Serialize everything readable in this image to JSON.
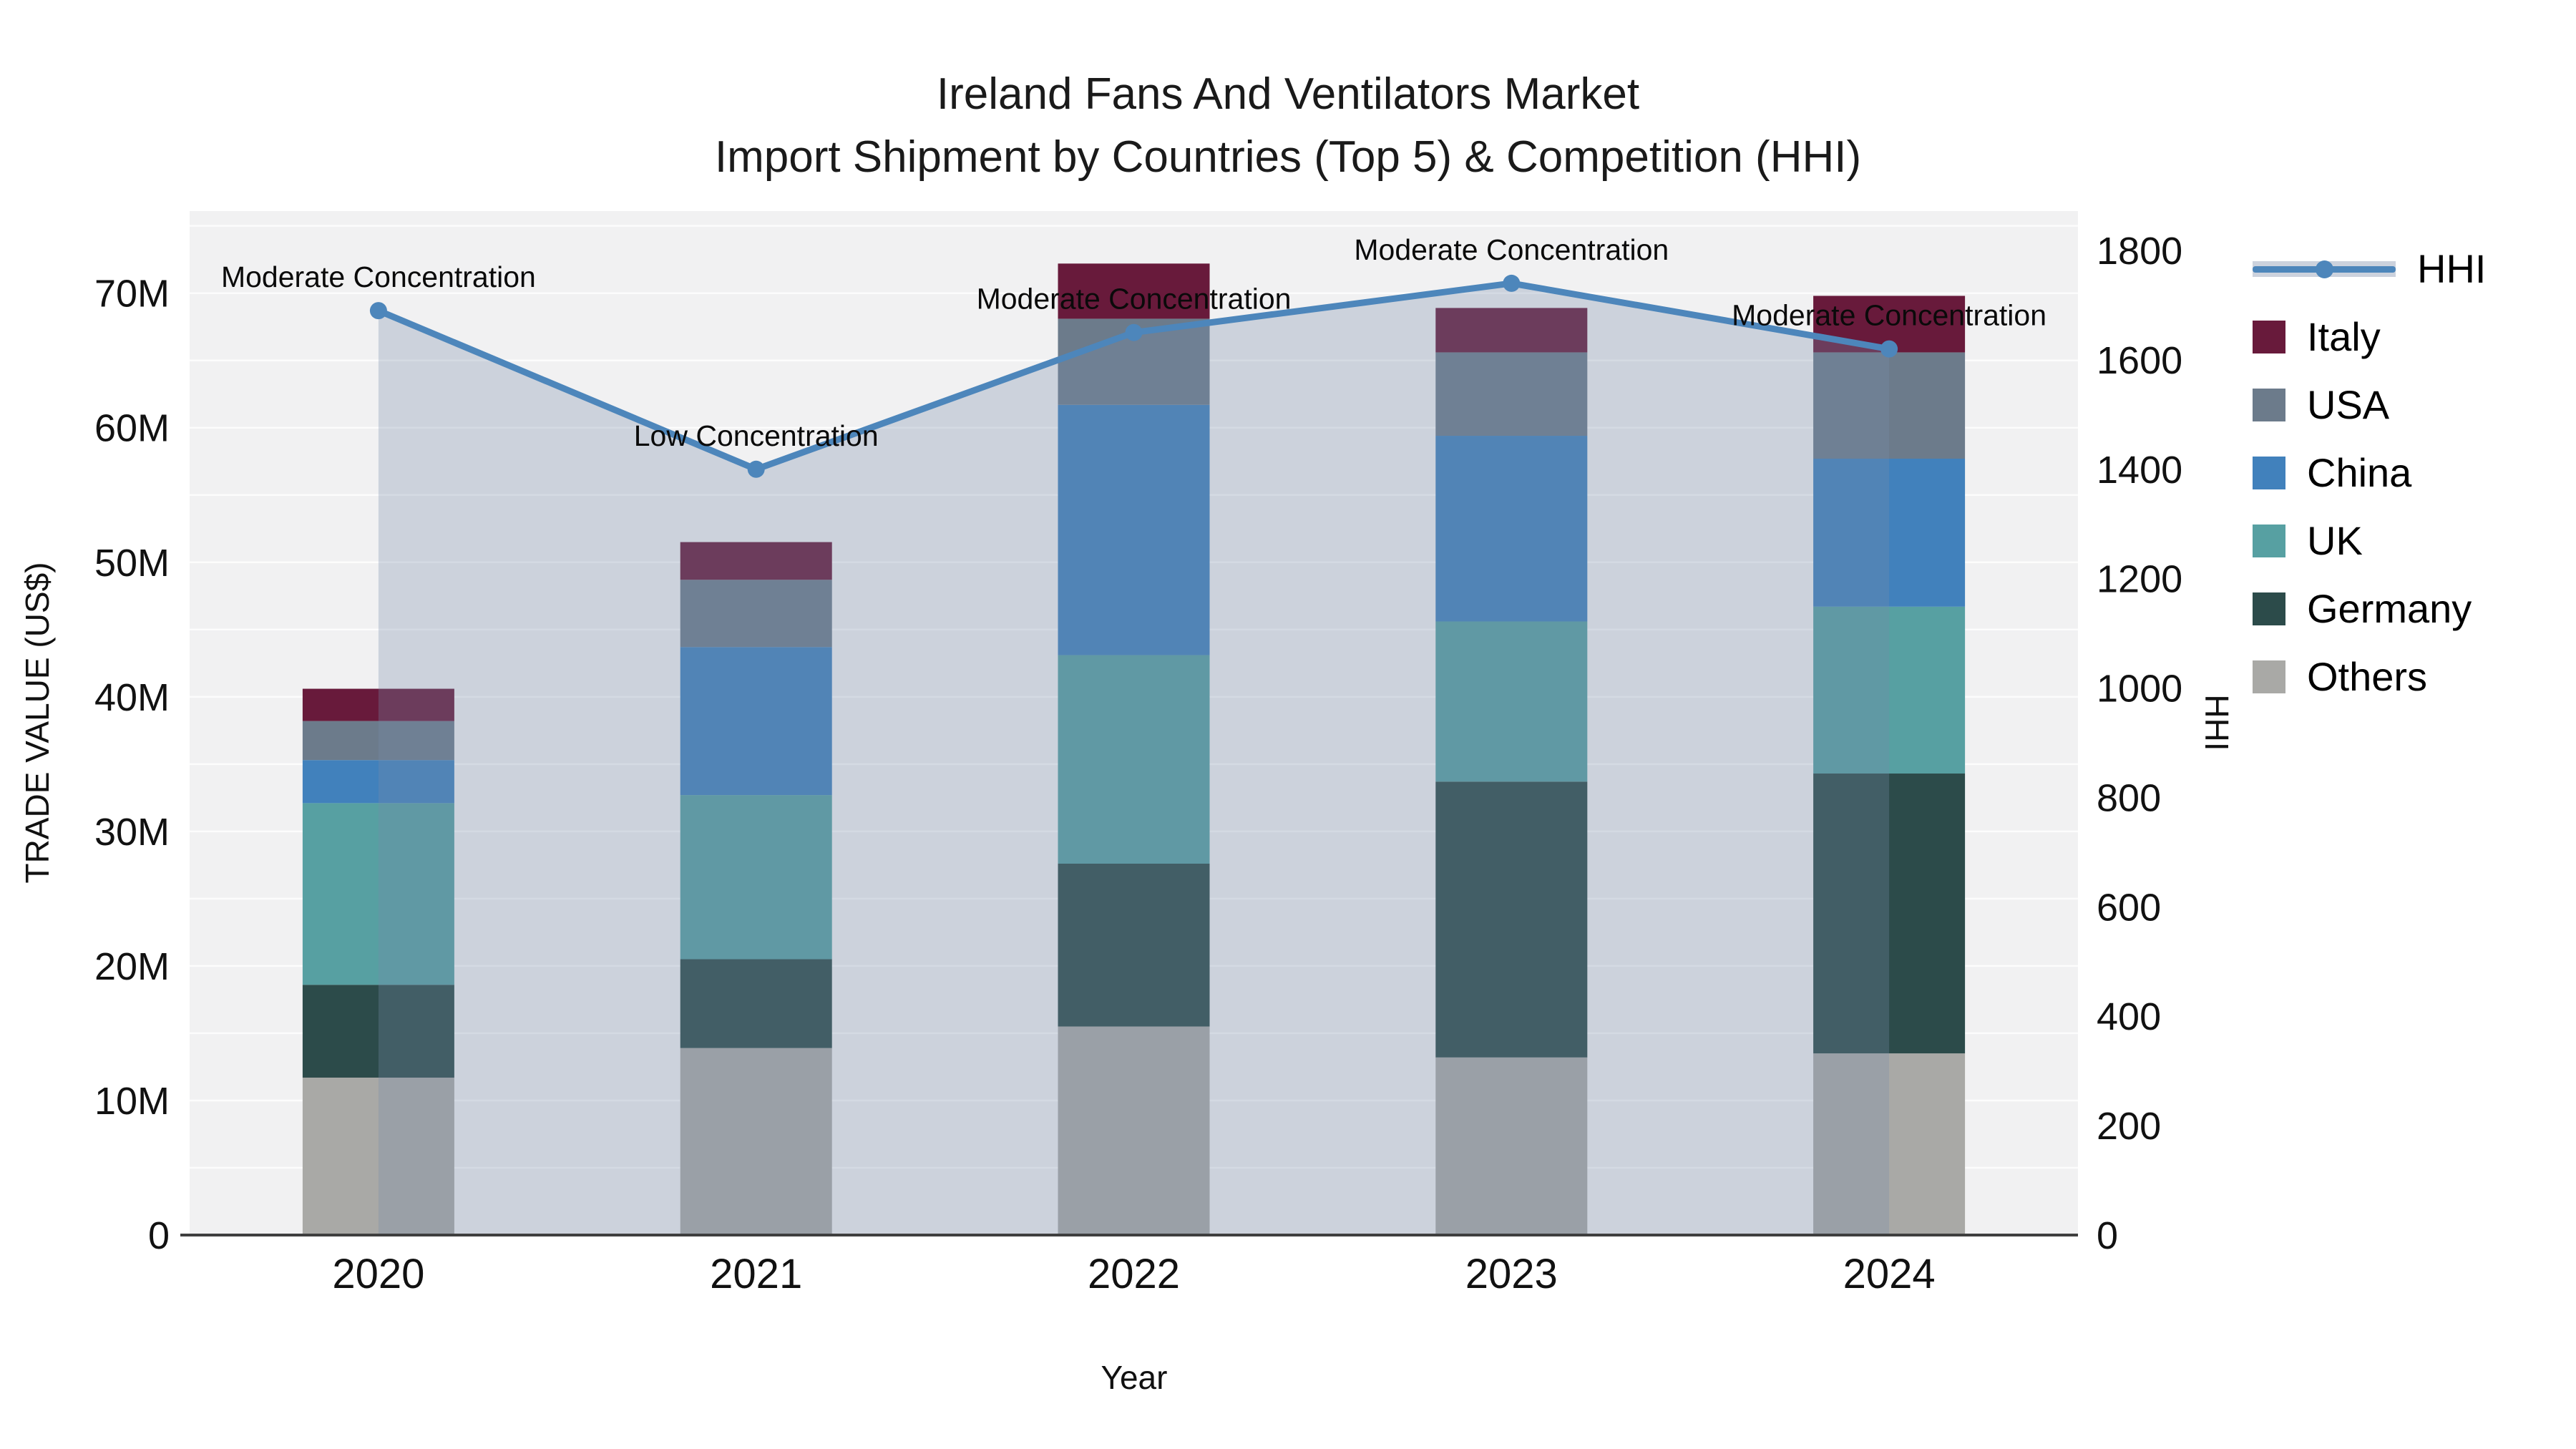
{
  "title": {
    "line1": "Ireland Fans And Ventilators Market",
    "line2": "Import Shipment by Countries (Top 5) & Competition (HHI)"
  },
  "axes": {
    "left": {
      "title": "TRADE VALUE (US$)",
      "tick_labels": [
        "0",
        "10M",
        "20M",
        "30M",
        "40M",
        "50M",
        "60M",
        "70M"
      ],
      "tick_values": [
        0,
        10,
        20,
        30,
        40,
        50,
        60,
        70
      ],
      "max": 76.1
    },
    "right": {
      "title": "HHI",
      "tick_labels": [
        "0",
        "200",
        "400",
        "600",
        "800",
        "1000",
        "1200",
        "1400",
        "1600",
        "1800"
      ],
      "tick_values": [
        0,
        200,
        400,
        600,
        800,
        1000,
        1200,
        1400,
        1600,
        1800
      ],
      "max": 1872
    },
    "x": {
      "title": "Year"
    }
  },
  "chart_data": {
    "type": "bar+line",
    "title": "Ireland Fans And Ventilators Market — Import Shipment by Countries (Top 5) & Competition (HHI)",
    "categories": [
      "2020",
      "2021",
      "2022",
      "2023",
      "2024"
    ],
    "bar_unit": "M US$",
    "stack_order_bottom_to_top": [
      "Others",
      "Germany",
      "UK",
      "China",
      "USA",
      "Italy"
    ],
    "series": [
      {
        "name": "Others",
        "color": "#A9A9A6",
        "values": [
          11.7,
          13.9,
          15.5,
          13.2,
          13.5
        ]
      },
      {
        "name": "Germany",
        "color": "#2C4B4A",
        "values": [
          6.9,
          6.6,
          12.1,
          20.5,
          20.8
        ]
      },
      {
        "name": "UK",
        "color": "#57A0A2",
        "values": [
          13.5,
          12.2,
          15.5,
          11.9,
          12.4
        ]
      },
      {
        "name": "China",
        "color": "#4181BC",
        "values": [
          3.2,
          11.0,
          18.6,
          13.8,
          11.0
        ]
      },
      {
        "name": "USA",
        "color": "#6C7B8B",
        "values": [
          2.9,
          5.0,
          6.4,
          6.2,
          7.9
        ]
      },
      {
        "name": "Italy",
        "color": "#681A3B",
        "values": [
          2.4,
          2.8,
          4.1,
          3.3,
          4.2
        ]
      }
    ],
    "bar_totals": [
      40.6,
      51.5,
      72.2,
      68.9,
      69.8
    ],
    "line": {
      "name": "HHI",
      "axis": "right",
      "values": [
        1690,
        1400,
        1650,
        1740,
        1620
      ],
      "color": "#4D86BB",
      "area_color": "rgba(120,140,170,0.30)"
    },
    "annotations": [
      "Moderate Concentration",
      "Low Concentration",
      "Moderate Concentration",
      "Moderate Concentration",
      "Moderate Concentration"
    ],
    "ylim_left": [
      0,
      76.1
    ],
    "ylim_right": [
      0,
      1872
    ],
    "grid": "horizontal every 5M",
    "legend_position": "right"
  },
  "legend": {
    "items": [
      {
        "label": "HHI",
        "type": "line"
      },
      {
        "label": "Italy",
        "type": "box",
        "color": "#681A3B"
      },
      {
        "label": "USA",
        "type": "box",
        "color": "#6C7B8B"
      },
      {
        "label": "China",
        "type": "box",
        "color": "#4181BC"
      },
      {
        "label": "UK",
        "type": "box",
        "color": "#57A0A2"
      },
      {
        "label": "Germany",
        "type": "box",
        "color": "#2C4B4A"
      },
      {
        "label": "Others",
        "type": "box",
        "color": "#A9A9A6"
      }
    ]
  },
  "colors": {
    "plot_bg": "#F1F1F2",
    "gridline": "#FFFFFF",
    "axis_line": "#3F3F3F",
    "text": "#111111"
  }
}
